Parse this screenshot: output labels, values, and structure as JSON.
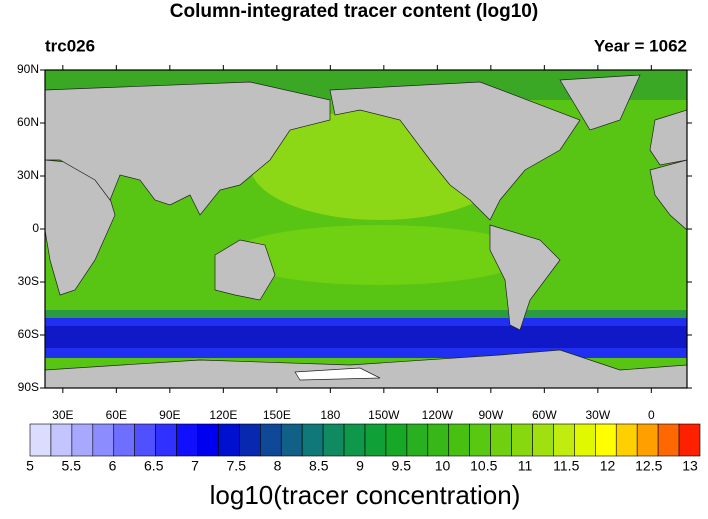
{
  "title": "Column-integrated tracer content (log10)",
  "left_label": "trc026",
  "right_label": "Year = 1062",
  "lat_ticks": [
    {
      "value": 90,
      "label": "90N"
    },
    {
      "value": 60,
      "label": "60N"
    },
    {
      "value": 30,
      "label": "30N"
    },
    0,
    {
      "value": -30,
      "label": "30S"
    },
    {
      "value": -60,
      "label": "60S"
    },
    {
      "value": -90,
      "label": "90S"
    }
  ],
  "lon_ticks": [
    {
      "value": 30,
      "label": "30E"
    },
    {
      "value": 60,
      "label": "60E"
    },
    {
      "value": 90,
      "label": "90E"
    },
    {
      "value": 120,
      "label": "120E"
    },
    {
      "value": 150,
      "label": "150E"
    },
    180,
    {
      "value": -150,
      "label": "150W"
    },
    {
      "value": -120,
      "label": "120W"
    },
    {
      "value": -90,
      "label": "90W"
    },
    {
      "value": -60,
      "label": "60W"
    },
    {
      "value": -30,
      "label": "30W"
    },
    0
  ],
  "colorbar": {
    "title": "log10(tracer concentration)",
    "labels": [
      5,
      5.5,
      6,
      6.5,
      7,
      7.5,
      8,
      8.5,
      9,
      9.5,
      10,
      10.5,
      11,
      11.5,
      12,
      12.5,
      13
    ],
    "colors": [
      "#dcdcff",
      "#c4c4ff",
      "#a8a8ff",
      "#8c8cff",
      "#6e6eff",
      "#5050ff",
      "#3030ff",
      "#1010ff",
      "#0000f0",
      "#0010d0",
      "#0828b0",
      "#104898",
      "#106088",
      "#107878",
      "#108a60",
      "#10984a",
      "#10a038",
      "#18a828",
      "#28b020",
      "#38b818",
      "#48c010",
      "#58c810",
      "#70d010",
      "#88d810",
      "#a0e010",
      "#c0ec10",
      "#e0f800",
      "#ffff00",
      "#ffd000",
      "#ffa000",
      "#ff6800",
      "#ff2000"
    ]
  }
}
